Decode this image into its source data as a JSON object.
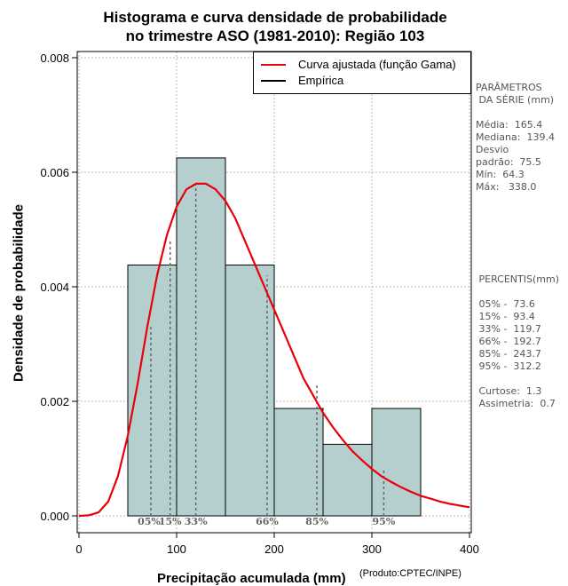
{
  "title": {
    "line1": "Histograma e curva densidade de probabilidade",
    "line2": "no trimestre ASO (1981-2010): Região 103"
  },
  "axes": {
    "xlabel": "Precipitação acumulada (mm)",
    "ylabel": "Densidade de probabilidade",
    "credit": "(Produto:CPTEC/INPE)"
  },
  "legend": {
    "fit": "Curva ajustada (função Gama)",
    "empirical": "Empírica"
  },
  "stats": {
    "header1": "PARÂMETROS",
    "header2": " DA SÉRIE (mm)",
    "media": "Média:  165.4",
    "mediana": "Mediana:  139.4",
    "desvio1": "Desvio",
    "desvio2": "padrão:  75.5",
    "min": "Mín:  64.3",
    "max": "Máx:   338.0"
  },
  "percentis": {
    "header": " PERCENTIS(mm)",
    "p05": " 05% -  73.6",
    "p15": " 15% -  93.4",
    "p33": " 33% -  119.7",
    "p66": " 66% -  192.7",
    "p85": " 85% -  243.7",
    "p95": " 95% -  312.2",
    "curtose": " Curtose:  1.3",
    "assimetria": " Assimetria:  0.7"
  },
  "colors": {
    "bar": "#b5cfcf",
    "curve": "#e8000b",
    "grid": "#bbbbbb",
    "percentile_line": "#666666"
  },
  "chart_data": {
    "type": "bar",
    "bins": [
      {
        "from": 50,
        "to": 100,
        "density": 0.00438
      },
      {
        "from": 100,
        "to": 150,
        "density": 0.00625
      },
      {
        "from": 150,
        "to": 200,
        "density": 0.00438
      },
      {
        "from": 200,
        "to": 250,
        "density": 0.001875
      },
      {
        "from": 250,
        "to": 300,
        "density": 0.00125
      },
      {
        "from": 300,
        "to": 350,
        "density": 0.001875
      }
    ],
    "curve": {
      "x": [
        0,
        10,
        20,
        30,
        40,
        50,
        60,
        70,
        80,
        90,
        100,
        110,
        120,
        130,
        140,
        150,
        160,
        170,
        180,
        190,
        200,
        210,
        220,
        230,
        240,
        250,
        260,
        270,
        280,
        290,
        300,
        310,
        320,
        330,
        340,
        350,
        360,
        370,
        380,
        390,
        400
      ],
      "y": [
        0,
        1e-05,
        6e-05,
        0.00025,
        0.0007,
        0.0014,
        0.0023,
        0.0033,
        0.0042,
        0.0049,
        0.0054,
        0.0057,
        0.0058,
        0.0058,
        0.0057,
        0.0055,
        0.0052,
        0.0048,
        0.0044,
        0.004,
        0.0036,
        0.0032,
        0.0028,
        0.0024,
        0.0021,
        0.0018,
        0.00155,
        0.00133,
        0.00113,
        0.00097,
        0.00082,
        0.00069,
        0.00059,
        0.0005,
        0.00042,
        0.00035,
        0.0003,
        0.00025,
        0.00021,
        0.00018,
        0.00015
      ]
    },
    "percentiles": [
      {
        "label": "05%",
        "x": 73.6,
        "y": 0.0033
      },
      {
        "label": "15%",
        "x": 93.4,
        "y": 0.0048
      },
      {
        "label": "33%",
        "x": 119.7,
        "y": 0.0058
      },
      {
        "label": "66%",
        "x": 192.7,
        "y": 0.0042
      },
      {
        "label": "85%",
        "x": 243.7,
        "y": 0.0023
      },
      {
        "label": "95%",
        "x": 312.2,
        "y": 0.0008
      }
    ],
    "xlim": [
      0,
      400
    ],
    "ylim": [
      0,
      0.008
    ],
    "xticks": [
      0,
      100,
      200,
      300,
      400
    ],
    "yticks": [
      0.0,
      0.002,
      0.004,
      0.006,
      0.008
    ],
    "ytick_labels": [
      "0.000",
      "0.002",
      "0.004",
      "0.006",
      "0.008"
    ],
    "grid": true,
    "legend_position": "top-right"
  }
}
